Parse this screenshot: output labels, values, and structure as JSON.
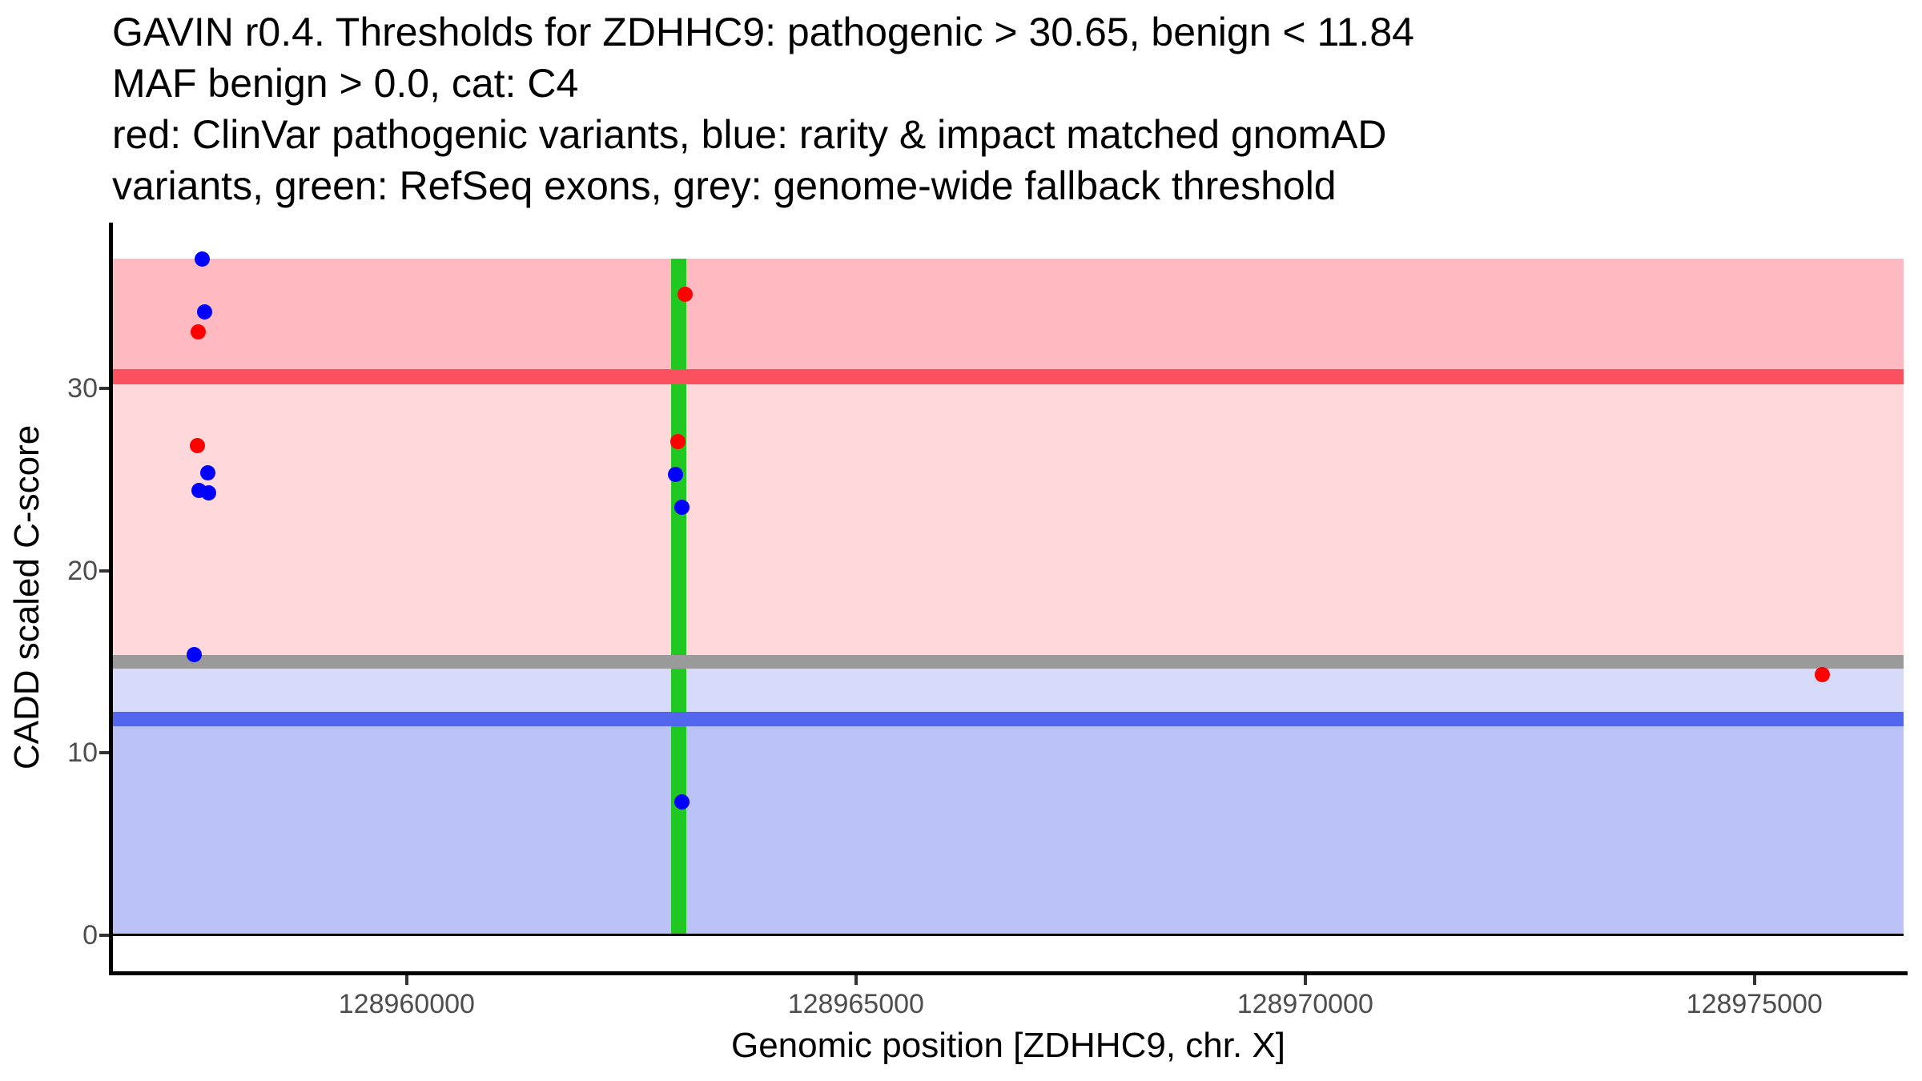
{
  "header": {
    "lines": [
      "GAVIN r0.4. Thresholds for ZDHHC9: pathogenic > 30.65, benign < 11.84",
      "MAF benign > 0.0, cat: C4",
      "red: ClinVar pathogenic variants, blue: rarity & impact matched gnomAD",
      "variants, green: RefSeq exons, grey: genome-wide fallback threshold"
    ]
  },
  "chart_data": {
    "type": "scatter",
    "title": "GAVIN r0.4. Thresholds for ZDHHC9: pathogenic > 30.65, benign < 11.84 | MAF benign > 0.0, cat: C4 | red: ClinVar pathogenic variants, blue: rarity & impact matched gnomAD variants, green: RefSeq exons, grey: genome-wide fallback threshold",
    "xlabel": "Genomic position [ZDHHC9, chr. X]",
    "ylabel": "CADD scaled C-score",
    "gene": "ZDHHC9",
    "chromosome": "X",
    "xlim": [
      128956730,
      128976660
    ],
    "ylim": [
      -2.0,
      39.1
    ],
    "x_ticks": [
      128960000,
      128965000,
      128970000,
      128975000
    ],
    "y_ticks": [
      0,
      10,
      20,
      30
    ],
    "grid": false,
    "legend_position": "none",
    "thresholds": {
      "pathogenic_gt": 30.65,
      "benign_lt": 11.84,
      "maf_benign_gt": 0.0,
      "category": "C4",
      "genome_wide_fallback": 15.0
    },
    "bands": [
      {
        "name": "pathogenic-zone",
        "from": 30.65,
        "to": 37.1,
        "color": "#FFB9C1"
      },
      {
        "name": "likely-pathogenic-zone",
        "from": 15.0,
        "to": 30.65,
        "color": "#FFD8DC"
      },
      {
        "name": "intermediate-zone",
        "from": 11.84,
        "to": 15.0,
        "color": "#D6DAF8"
      },
      {
        "name": "benign-zone",
        "from": 0,
        "to": 11.84,
        "color": "#BAC2F6"
      }
    ],
    "threshold_lines": [
      {
        "name": "pathogenic-threshold",
        "kind": "pathogenic",
        "value": 30.65,
        "color": "#FA505F"
      },
      {
        "name": "genome-wide-fallback-threshold",
        "kind": "fallback",
        "value": 15.0,
        "color": "#9A9A9A"
      },
      {
        "name": "benign-threshold",
        "kind": "benign",
        "value": 11.84,
        "color": "#5266EE"
      },
      {
        "name": "zero-baseline",
        "kind": "zero",
        "value": 0,
        "color": "#000000"
      }
    ],
    "exons": [
      {
        "name": "refseq-exon",
        "pos": 128963027,
        "width_bp": 164,
        "from": 0,
        "to": 37.1,
        "color": "#22C822"
      }
    ],
    "series": [
      {
        "name": "ClinVar pathogenic variants",
        "color": "#FF0000",
        "point_name": "clinvar-pathogenic-point",
        "points": [
          {
            "pos": 128957678,
            "cadd": 33.1
          },
          {
            "pos": 128957666,
            "cadd": 26.9
          },
          {
            "pos": 128963094,
            "cadd": 35.2
          },
          {
            "pos": 128963011,
            "cadd": 27.1
          },
          {
            "pos": 128975751,
            "cadd": 14.3
          }
        ]
      },
      {
        "name": "rarity & impact matched gnomAD variants",
        "color": "#0000FF",
        "point_name": "gnomad-matched-point",
        "points": [
          {
            "pos": 128957717,
            "cadd": 37.1
          },
          {
            "pos": 128957746,
            "cadd": 34.2
          },
          {
            "pos": 128957785,
            "cadd": 25.4
          },
          {
            "pos": 128957686,
            "cadd": 24.4
          },
          {
            "pos": 128957791,
            "cadd": 24.3
          },
          {
            "pos": 128957628,
            "cadd": 15.4
          },
          {
            "pos": 128962990,
            "cadd": 25.3
          },
          {
            "pos": 128963058,
            "cadd": 23.5
          },
          {
            "pos": 128963056,
            "cadd": 7.3
          }
        ]
      }
    ]
  }
}
